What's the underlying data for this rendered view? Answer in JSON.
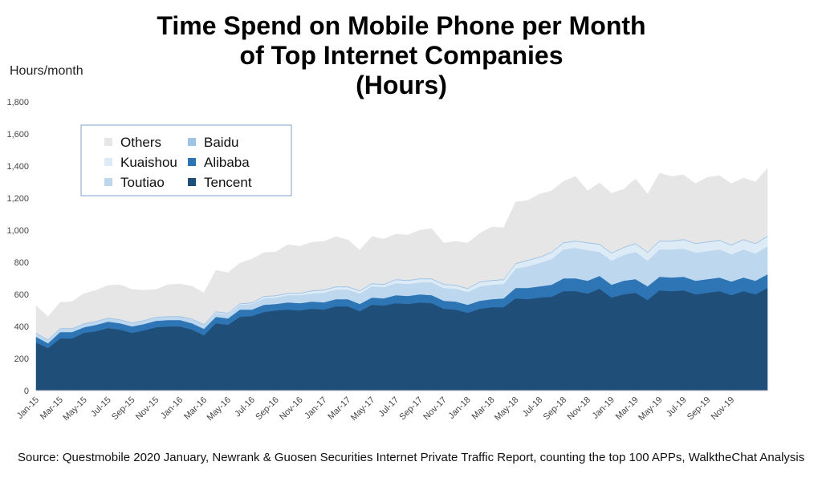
{
  "chart_data": {
    "type": "area",
    "stacked": true,
    "title": "Time Spend on Mobile Phone per Month\nof Top Internet Companies\n(Hours)",
    "ylabel": "Hours/month",
    "ylim": [
      0,
      1800
    ],
    "yticks": [
      "0",
      "200",
      "400",
      "600",
      "800",
      "1,000",
      "1,200",
      "1,400",
      "1,600",
      "1,800"
    ],
    "xtick_labels": [
      "Jan-15",
      "Mar-15",
      "May-15",
      "Jul-15",
      "Sep-15",
      "Nov-15",
      "Jan-16",
      "Mar-16",
      "May-16",
      "Jul-16",
      "Sep-16",
      "Nov-16",
      "Jan-17",
      "Mar-17",
      "May-17",
      "Jul-17",
      "Sep-17",
      "Nov-17",
      "Jan-18",
      "Mar-18",
      "May-18",
      "Jul-18",
      "Sep-18",
      "Nov-18",
      "Jan-19",
      "Mar-19",
      "May-19",
      "Jul-19",
      "Sep-19",
      "Nov-19"
    ],
    "legend": {
      "placement": "top-left",
      "order": [
        "Others",
        "Baidu",
        "Kuaishou",
        "Alibaba",
        "Toutiao",
        "Tencent"
      ]
    },
    "series": [
      {
        "name": "Tencent",
        "color": "#1f4e79",
        "values": [
          300,
          265,
          325,
          325,
          360,
          370,
          390,
          380,
          360,
          375,
          395,
          400,
          400,
          380,
          345,
          420,
          410,
          460,
          465,
          490,
          500,
          505,
          500,
          510,
          505,
          525,
          525,
          495,
          535,
          530,
          545,
          540,
          550,
          545,
          510,
          505,
          485,
          510,
          520,
          520,
          575,
          570,
          580,
          585,
          620,
          620,
          605,
          635,
          580,
          600,
          610,
          565,
          625,
          620,
          625,
          600,
          610,
          620,
          595,
          620,
          600,
          640
        ]
      },
      {
        "name": "Alibaba",
        "color": "#2e75b6",
        "values": [
          35,
          30,
          40,
          40,
          35,
          40,
          40,
          40,
          40,
          40,
          40,
          40,
          40,
          40,
          40,
          40,
          40,
          45,
          40,
          45,
          40,
          45,
          45,
          45,
          45,
          45,
          45,
          45,
          45,
          45,
          50,
          50,
          50,
          50,
          50,
          50,
          50,
          50,
          50,
          55,
          65,
          70,
          70,
          75,
          80,
          80,
          80,
          80,
          80,
          85,
          85,
          85,
          85,
          85,
          85,
          85,
          85,
          85,
          85,
          85,
          85,
          85
        ]
      },
      {
        "name": "Toutiao",
        "color": "#bdd7ee",
        "values": [
          20,
          20,
          20,
          20,
          20,
          20,
          20,
          20,
          20,
          20,
          20,
          20,
          20,
          25,
          25,
          25,
          25,
          30,
          35,
          40,
          40,
          45,
          50,
          50,
          60,
          60,
          60,
          65,
          70,
          70,
          75,
          75,
          75,
          80,
          80,
          80,
          80,
          90,
          90,
          90,
          120,
          135,
          145,
          160,
          180,
          190,
          190,
          150,
          150,
          160,
          170,
          160,
          170,
          175,
          175,
          175,
          175,
          175,
          170,
          175,
          170,
          175
        ]
      },
      {
        "name": "Kuaishou",
        "color": "#ddebf7",
        "values": [
          0,
          0,
          0,
          0,
          0,
          0,
          0,
          0,
          0,
          0,
          0,
          0,
          0,
          0,
          0,
          5,
          5,
          5,
          5,
          10,
          10,
          10,
          10,
          15,
          15,
          15,
          15,
          15,
          15,
          15,
          20,
          20,
          20,
          20,
          20,
          20,
          20,
          25,
          25,
          25,
          30,
          35,
          35,
          40,
          40,
          40,
          45,
          45,
          45,
          45,
          50,
          50,
          50,
          50,
          55,
          55,
          55,
          55,
          55,
          60,
          60,
          60
        ]
      },
      {
        "name": "Baidu",
        "color": "#9dc3e6",
        "values": [
          5,
          5,
          5,
          5,
          5,
          5,
          5,
          5,
          5,
          5,
          5,
          5,
          5,
          5,
          5,
          5,
          5,
          5,
          5,
          5,
          5,
          5,
          5,
          5,
          5,
          5,
          5,
          5,
          5,
          5,
          5,
          5,
          5,
          5,
          5,
          5,
          5,
          5,
          5,
          5,
          5,
          5,
          5,
          5,
          5,
          5,
          5,
          5,
          5,
          5,
          5,
          5,
          5,
          5,
          5,
          5,
          5,
          5,
          5,
          5,
          5,
          5
        ]
      },
      {
        "name": "Others",
        "color": "#e6e6e6",
        "values": [
          170,
          140,
          160,
          165,
          185,
          190,
          200,
          215,
          205,
          185,
          170,
          195,
          200,
          200,
          195,
          255,
          250,
          250,
          270,
          270,
          270,
          300,
          290,
          300,
          300,
          310,
          290,
          250,
          290,
          280,
          280,
          280,
          300,
          310,
          255,
          270,
          280,
          300,
          330,
          320,
          380,
          370,
          390,
          380,
          380,
          400,
          320,
          380,
          370,
          360,
          400,
          360,
          420,
          400,
          400,
          370,
          400,
          400,
          380,
          380,
          380,
          420
        ]
      }
    ]
  },
  "source": "Source: Questmobile 2020 January, Newrank & Guosen Securities Internet Private Traffic Report, counting the top 100 APPs, WalktheChat Analysis"
}
